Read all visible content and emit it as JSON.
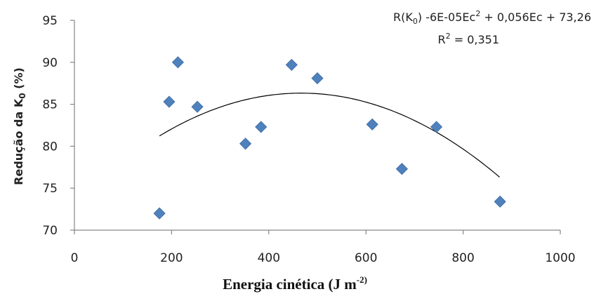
{
  "chart_data": {
    "type": "scatter",
    "xlabel": "Energia cinética (J m",
    "xlabel_sup": "-2)",
    "xlabel_end": "",
    "ylabel": "Redução da  K",
    "ylabel_sub": "0",
    "ylabel_end": " (%)",
    "xlim": [
      0,
      1000
    ],
    "ylim": [
      70,
      95
    ],
    "xticks": [
      "0",
      "200",
      "400",
      "600",
      "800",
      "1000"
    ],
    "yticks": [
      "70",
      "75",
      "80",
      "85",
      "90",
      "95"
    ],
    "grid": false,
    "marker_color": "#4f81bd",
    "trend_color": "#000000",
    "equation": {
      "prefix": "R(K",
      "sub": "0",
      "mid": ")    -6E-05Ec",
      "sup": "2",
      "rest": " + 0,056Ec + 73,26",
      "r2_prefix": "R",
      "r2_sup": "2",
      "r2_rest": " = 0,351"
    },
    "trendline": {
      "a": -6e-05,
      "b": 0.056,
      "c": 73.26,
      "x_from": 175,
      "x_to": 875
    },
    "points": [
      {
        "x": 175,
        "y": 72.0
      },
      {
        "x": 195,
        "y": 85.3
      },
      {
        "x": 213,
        "y": 90.0
      },
      {
        "x": 253,
        "y": 84.7
      },
      {
        "x": 352,
        "y": 80.3
      },
      {
        "x": 384,
        "y": 82.3
      },
      {
        "x": 447,
        "y": 89.7
      },
      {
        "x": 500,
        "y": 88.1
      },
      {
        "x": 613,
        "y": 82.6
      },
      {
        "x": 674,
        "y": 77.3
      },
      {
        "x": 745,
        "y": 82.3
      },
      {
        "x": 876,
        "y": 73.4
      }
    ]
  }
}
